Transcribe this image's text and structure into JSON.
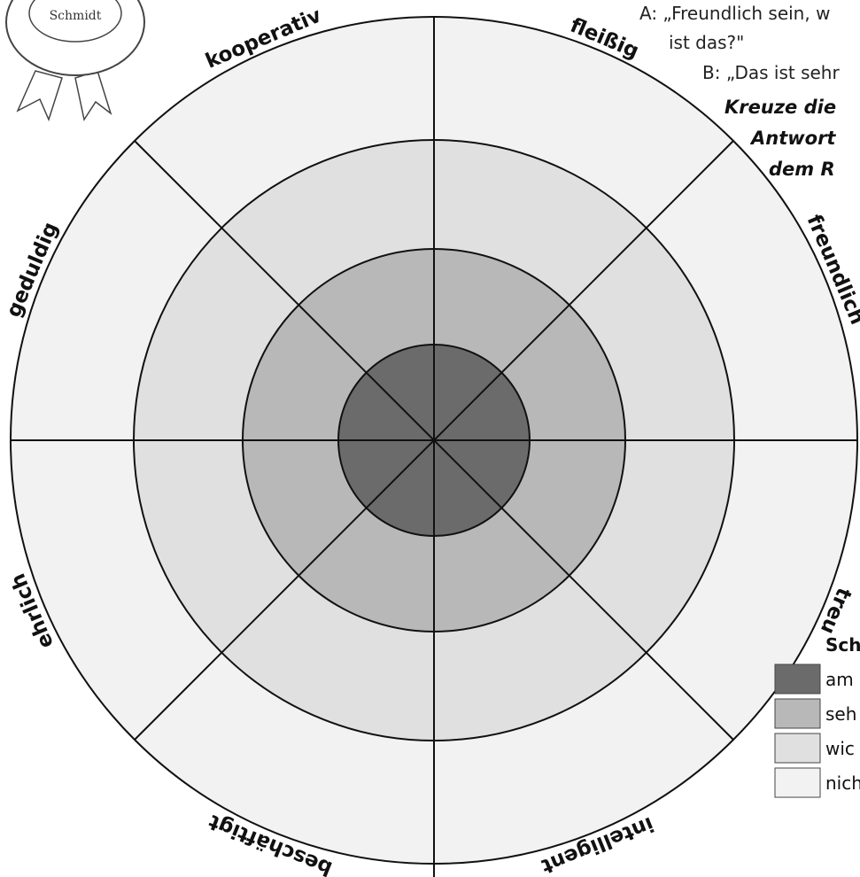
{
  "badge": {
    "name": "Schmidt"
  },
  "dialogue": {
    "line_a": "A: „Freundlich sein, w",
    "line_a_cont": "ist das?\"",
    "line_b": "B: „Das ist sehr"
  },
  "instruction": [
    "Kreuze die",
    "Antwort",
    "dem R"
  ],
  "wheel": {
    "labels": [
      "freundlich",
      "treu",
      "intelligent",
      "beschäftigt",
      "ehrlich",
      "geduldig",
      "kooperativ",
      "fleißig"
    ]
  },
  "legend": {
    "title": "Sch",
    "items": [
      "am",
      "seh",
      "wic",
      "nich"
    ]
  }
}
